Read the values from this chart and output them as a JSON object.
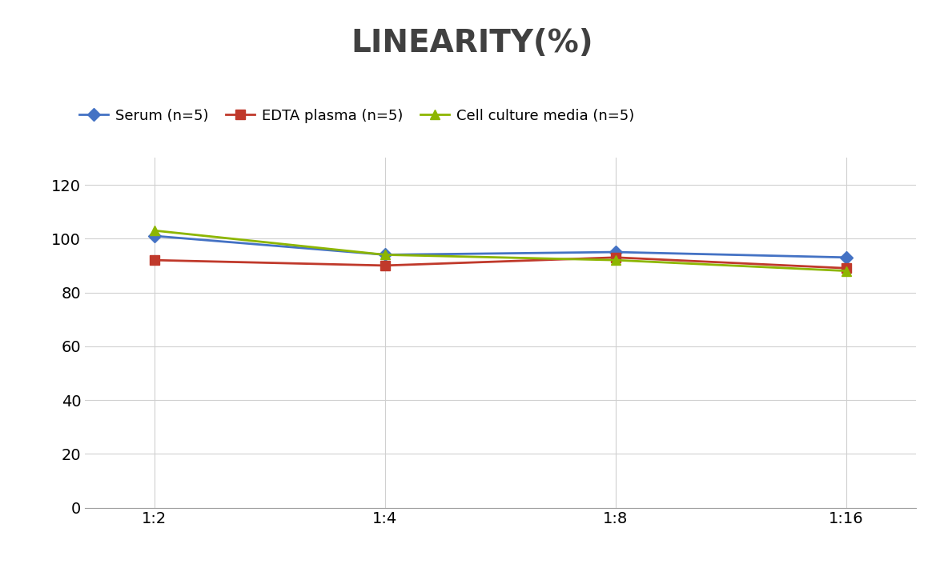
{
  "title": "LINEARITY(%)",
  "title_fontsize": 28,
  "title_fontweight": "bold",
  "title_color": "#404040",
  "x_labels": [
    "1:2",
    "1:4",
    "1:8",
    "1:16"
  ],
  "x_positions": [
    0,
    1,
    2,
    3
  ],
  "ylim": [
    0,
    130
  ],
  "yticks": [
    0,
    20,
    40,
    60,
    80,
    100,
    120
  ],
  "series": [
    {
      "label": "Serum (n=5)",
      "values": [
        101,
        94,
        95,
        93
      ],
      "color": "#4472C4",
      "marker": "D",
      "markersize": 8,
      "linewidth": 2.0
    },
    {
      "label": "EDTA plasma (n=5)",
      "values": [
        92,
        90,
        93,
        89
      ],
      "color": "#C0392B",
      "marker": "s",
      "markersize": 8,
      "linewidth": 2.0
    },
    {
      "label": "Cell culture media (n=5)",
      "values": [
        103,
        94,
        92,
        88
      ],
      "color": "#8DB600",
      "marker": "^",
      "markersize": 8,
      "linewidth": 2.0
    }
  ],
  "legend_fontsize": 13,
  "tick_fontsize": 14,
  "grid_color": "#D0D0D0",
  "background_color": "#FFFFFF",
  "figure_width": 11.79,
  "figure_height": 7.05,
  "dpi": 100
}
